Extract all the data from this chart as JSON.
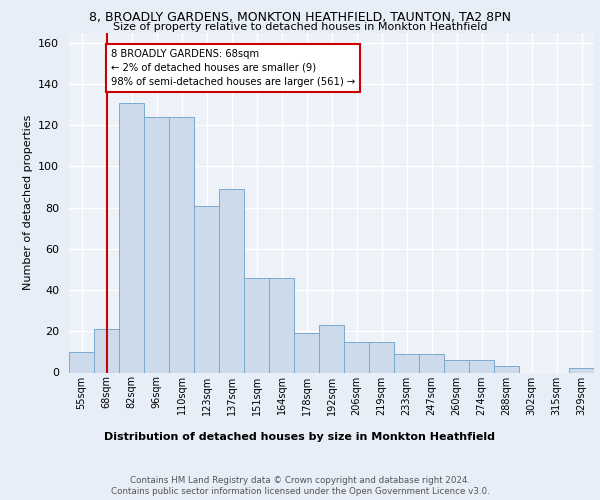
{
  "title1": "8, BROADLY GARDENS, MONKTON HEATHFIELD, TAUNTON, TA2 8PN",
  "title2": "Size of property relative to detached houses in Monkton Heathfield",
  "xlabel": "Distribution of detached houses by size in Monkton Heathfield",
  "ylabel": "Number of detached properties",
  "categories": [
    "55sqm",
    "68sqm",
    "82sqm",
    "96sqm",
    "110sqm",
    "123sqm",
    "137sqm",
    "151sqm",
    "164sqm",
    "178sqm",
    "192sqm",
    "206sqm",
    "219sqm",
    "233sqm",
    "247sqm",
    "260sqm",
    "274sqm",
    "288sqm",
    "302sqm",
    "315sqm",
    "329sqm"
  ],
  "values": [
    10,
    21,
    131,
    124,
    124,
    81,
    89,
    46,
    46,
    19,
    23,
    15,
    15,
    9,
    9,
    6,
    6,
    3,
    0,
    0,
    2
  ],
  "bar_color": "#cddaeb",
  "bar_edge_color": "#7aaacf",
  "vline_x": 1,
  "vline_color": "#cc0000",
  "annotation_text": "8 BROADLY GARDENS: 68sqm\n← 2% of detached houses are smaller (9)\n98% of semi-detached houses are larger (561) →",
  "annotation_box_color": "#ffffff",
  "annotation_box_edge": "#cc0000",
  "ylim": [
    0,
    165
  ],
  "yticks": [
    0,
    20,
    40,
    60,
    80,
    100,
    120,
    140,
    160
  ],
  "footer1": "Contains HM Land Registry data © Crown copyright and database right 2024.",
  "footer2": "Contains public sector information licensed under the Open Government Licence v3.0.",
  "bg_color": "#e8eef8",
  "plot_bg_color": "#edf1f8"
}
